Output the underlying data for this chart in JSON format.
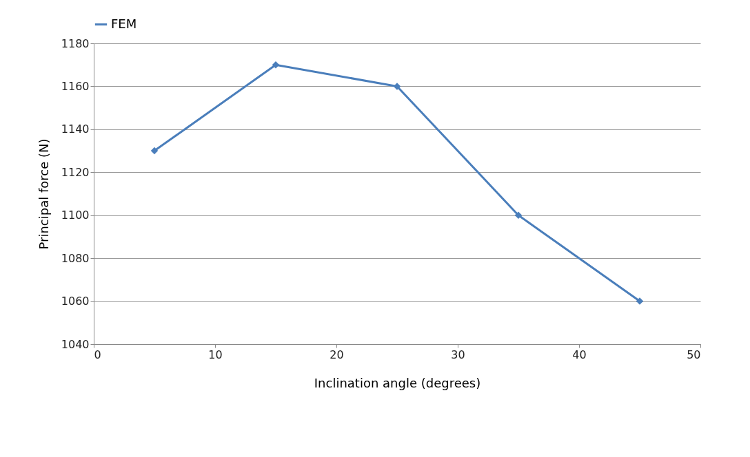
{
  "chart_data": {
    "type": "line",
    "xlabel": "Inclination angle (degrees)",
    "ylabel": "Principal force (N)",
    "x": [
      5,
      15,
      25,
      35,
      45
    ],
    "series": [
      {
        "name": "FEM",
        "color": "#4a7ebb",
        "values": [
          1130,
          1170,
          1160,
          1100,
          1060
        ]
      }
    ],
    "xlim": [
      0,
      50
    ],
    "xticks": [
      0,
      10,
      20,
      30,
      40,
      50
    ],
    "ylim": [
      1040,
      1180
    ],
    "yticks": [
      1040,
      1060,
      1080,
      1100,
      1120,
      1140,
      1160,
      1180
    ],
    "grid": "y",
    "legend": "top",
    "marker": "diamond",
    "line_style": "solid"
  }
}
